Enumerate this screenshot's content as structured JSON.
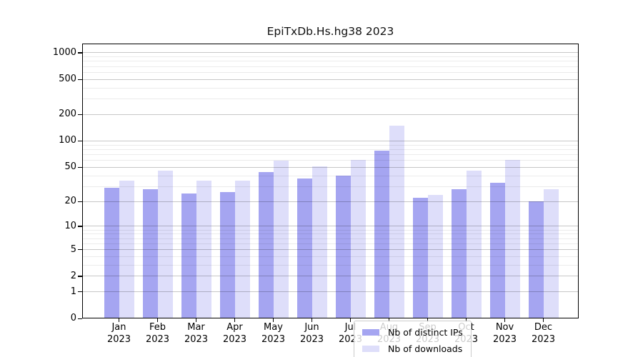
{
  "title": "EpiTxDb.Hs.hg38 2023",
  "chart_data": {
    "type": "bar",
    "title": "EpiTxDb.Hs.hg38 2023",
    "categories": [
      "Jan 2023",
      "Feb 2023",
      "Mar 2023",
      "Apr 2023",
      "May 2023",
      "Jun 2023",
      "Jul 2023",
      "Aug 2023",
      "Sep 2023",
      "Oct 2023",
      "Nov 2023",
      "Dec 2023"
    ],
    "series": [
      {
        "name": "Nb of distinct IPs",
        "color": "#a5a5f1",
        "values": [
          29,
          28,
          25,
          26,
          44,
          37,
          40,
          78,
          22,
          28,
          33,
          20
        ]
      },
      {
        "name": "Nb of downloads",
        "color": "#dedefa",
        "values": [
          35,
          46,
          35,
          35,
          60,
          51,
          61,
          150,
          24,
          46,
          61,
          28
        ]
      }
    ],
    "xlabel": "",
    "ylabel": "",
    "y_scale": "log1p",
    "y_ticks": [
      0,
      1,
      2,
      5,
      10,
      20,
      50,
      100,
      200,
      500,
      1000
    ],
    "ylim": [
      0,
      1300
    ],
    "grid": true,
    "legend_position": "lower center"
  }
}
